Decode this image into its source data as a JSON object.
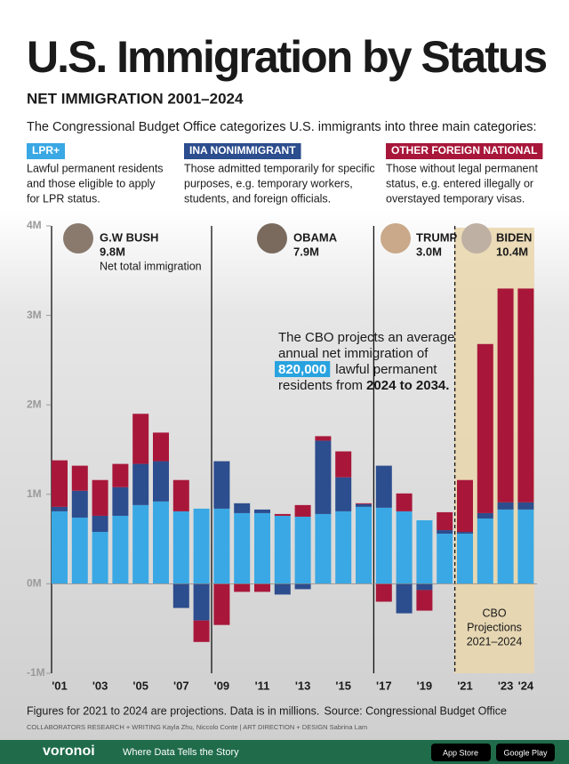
{
  "header": {
    "title": "U.S. Immigration by Status",
    "subtitle": "NET IMMIGRATION 2001–2024",
    "intro": "The Congressional Budget Office categorizes U.S. immigrants into three main categories:"
  },
  "legend_notes": [
    {
      "tag": "LPR+",
      "lines": [
        "Lawful permanent residents",
        "and those eligible to apply",
        "for LPR status."
      ]
    },
    {
      "tag": "INA NONIMMIGRANT",
      "lines": [
        "Those admitted temporarily for specific",
        "purposes, e.g. temporary workers,",
        "students, and foreign officials."
      ]
    },
    {
      "tag": "OTHER FOREIGN NATIONAL",
      "lines": [
        "Those without legal permanent",
        "status, e.g. entered illegally or",
        "overstayed temporary visas."
      ]
    }
  ],
  "presidents": [
    {
      "name": "G.W BUSH",
      "total": "9.8M"
    },
    {
      "name": "OBAMA",
      "total": "7.9M"
    },
    {
      "name": "TRUMP",
      "total": "3.0M"
    },
    {
      "name": "BIDEN",
      "total": "10.4M"
    }
  ],
  "total_note": "Net total immigration",
  "callout": [
    "The CBO projects an average",
    "annual net immigration of",
    "820,000",
    "lawful permanent",
    "residents from",
    "2024 to 2034."
  ],
  "projection_label": [
    "CBO",
    "Projections",
    "2021–2024"
  ],
  "chart_data": {
    "type": "stacked-bar",
    "categories": [
      "'01",
      null,
      "'03",
      null,
      "'05",
      null,
      "'07",
      null,
      "'09",
      null,
      "'11",
      null,
      "'13",
      null,
      "'15",
      null,
      "'17",
      null,
      "'19",
      null,
      "'21",
      null,
      "'23",
      "'24"
    ],
    "series": [
      {
        "name": "LPR+",
        "color": "#3aa8e4",
        "values": [
          0.81,
          0.74,
          0.58,
          0.76,
          0.88,
          0.92,
          0.81,
          0.84,
          0.84,
          0.79,
          0.79,
          0.76,
          0.75,
          0.78,
          0.81,
          0.86,
          0.85,
          0.81,
          0.71,
          0.56,
          0.56,
          0.73,
          0.83,
          0.83
        ]
      },
      {
        "name": "INA NONIMMIGRANT",
        "color": "#2c4d8e",
        "values": [
          0.05,
          0.3,
          0.18,
          0.32,
          0.46,
          0.45,
          -0.27,
          -0.41,
          0.53,
          0.11,
          0.04,
          -0.12,
          -0.06,
          0.82,
          0.38,
          0.03,
          0.47,
          -0.33,
          -0.07,
          0.04,
          0.02,
          0.06,
          0.08,
          0.08
        ]
      },
      {
        "name": "OTHER FOREIGN NATIONAL",
        "color": "#a8173a",
        "values": [
          0.52,
          0.28,
          0.4,
          0.26,
          0.56,
          0.32,
          0.35,
          -0.24,
          -0.46,
          -0.09,
          -0.09,
          0.02,
          0.13,
          0.05,
          0.29,
          0.01,
          -0.2,
          0.2,
          -0.23,
          0.2,
          0.58,
          1.89,
          2.39,
          2.39
        ]
      }
    ],
    "ylim": [
      -1,
      4
    ],
    "yticks": [
      {
        "value": -1,
        "label": "-1M"
      },
      {
        "value": 0,
        "label": "0M"
      },
      {
        "value": 1,
        "label": "1M"
      },
      {
        "value": 2,
        "label": "2M"
      },
      {
        "value": 3,
        "label": "3M"
      },
      {
        "value": 4,
        "label": "4M"
      }
    ]
  },
  "footer": {
    "note": "Figures for 2021 to 2024 are projections. Data is in millions.",
    "source": "Source: Congressional Budget Office",
    "credits": "COLLABORATORS   RESEARCH + WRITING Kayla Zhu, Niccolo Conte  |  ART DIRECTION + DESIGN Sabrina Lam",
    "brand": "voronoi",
    "tagline": "Where Data Tells the Story",
    "app1": "App Store",
    "app2": "Google Play"
  }
}
